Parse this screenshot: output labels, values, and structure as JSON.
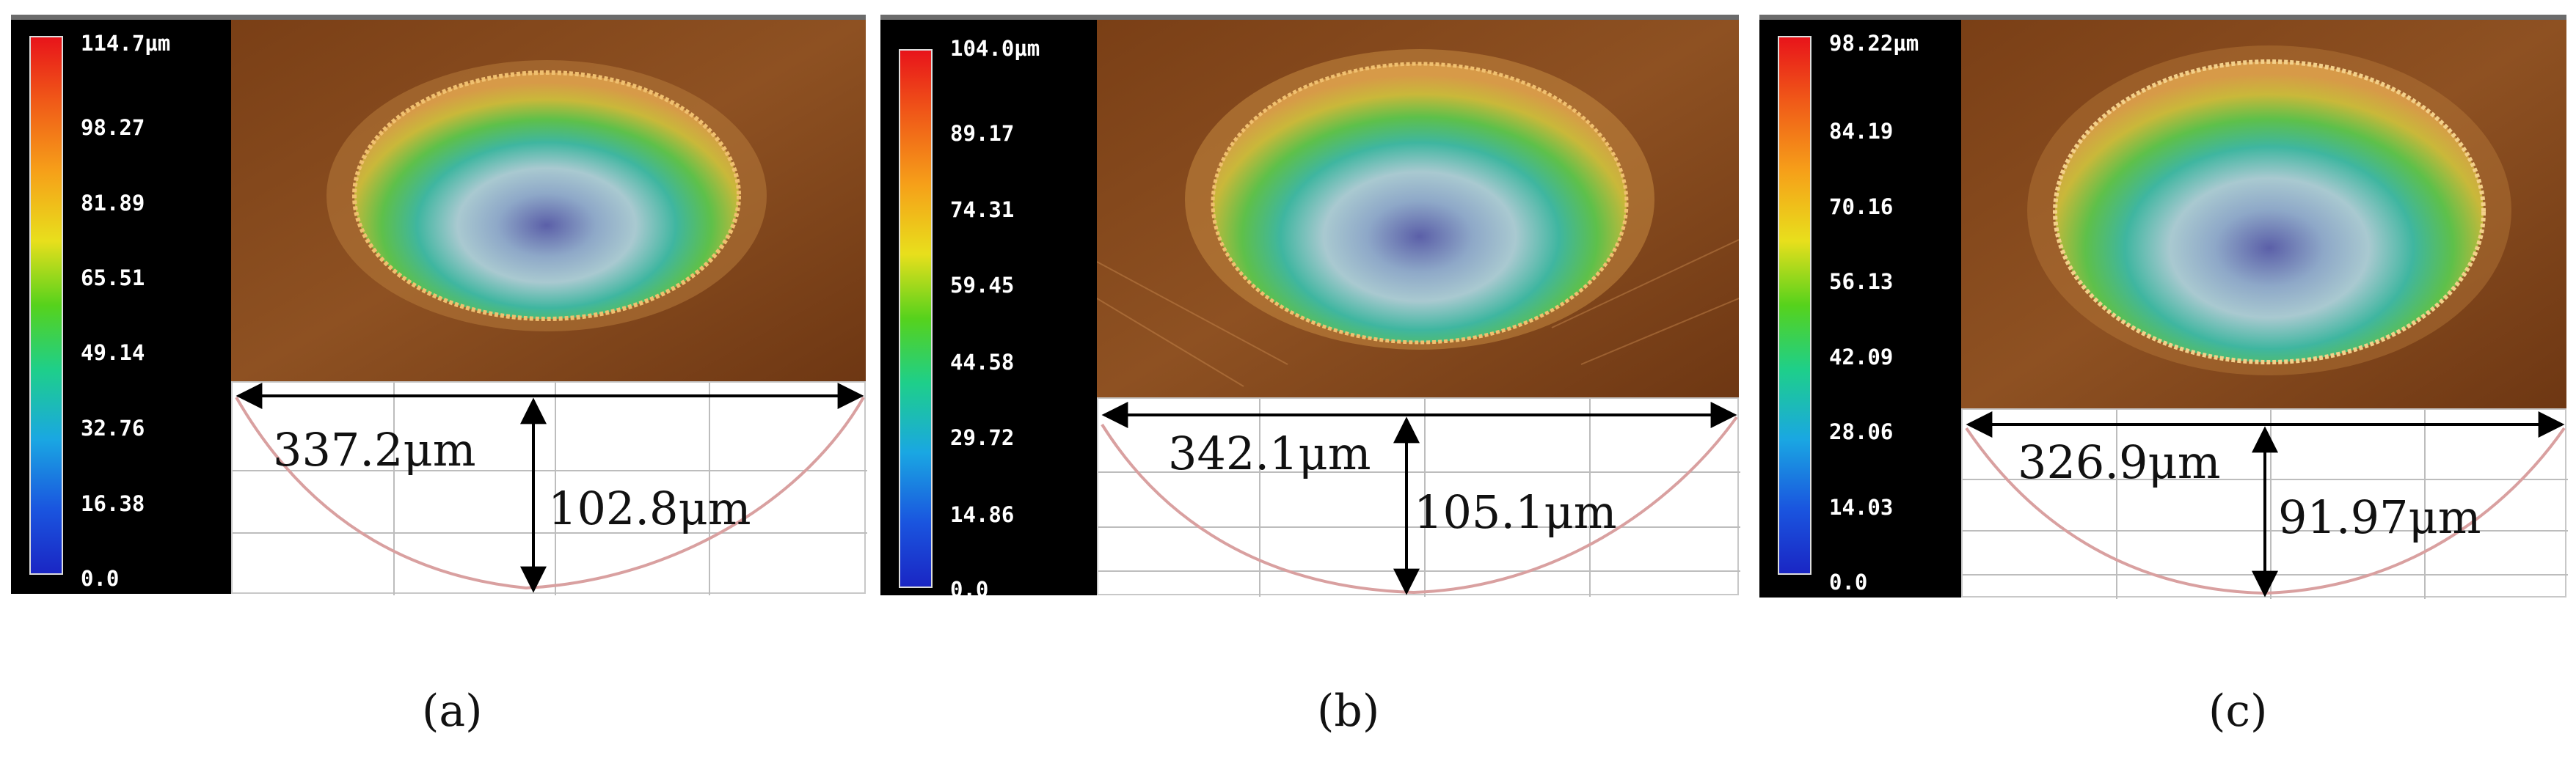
{
  "panels": [
    {
      "scale_ticks": [
        "114.7µm",
        "98.27",
        "81.89",
        "65.51",
        "49.14",
        "32.76",
        "16.38",
        "0.0"
      ],
      "width_label": "337.2μm",
      "depth_label": "102.8μm",
      "caption": "(a)"
    },
    {
      "scale_ticks": [
        "104.0µm",
        "89.17",
        "74.31",
        "59.45",
        "44.58",
        "29.72",
        "14.86",
        "0.0"
      ],
      "width_label": "342.1μm",
      "depth_label": "105.1μm",
      "caption": "(b)"
    },
    {
      "scale_ticks": [
        "98.22µm",
        "84.19",
        "70.16",
        "56.13",
        "42.09",
        "28.06",
        "14.03",
        "0.0"
      ],
      "width_label": "326.9μm",
      "depth_label": "91.97μm",
      "caption": "(c)"
    }
  ],
  "colors": {
    "surface": "#8a4a1c",
    "rim": "#e8b060",
    "profile_curve": "#d9a0a0",
    "grid": "#bdbdbd"
  }
}
